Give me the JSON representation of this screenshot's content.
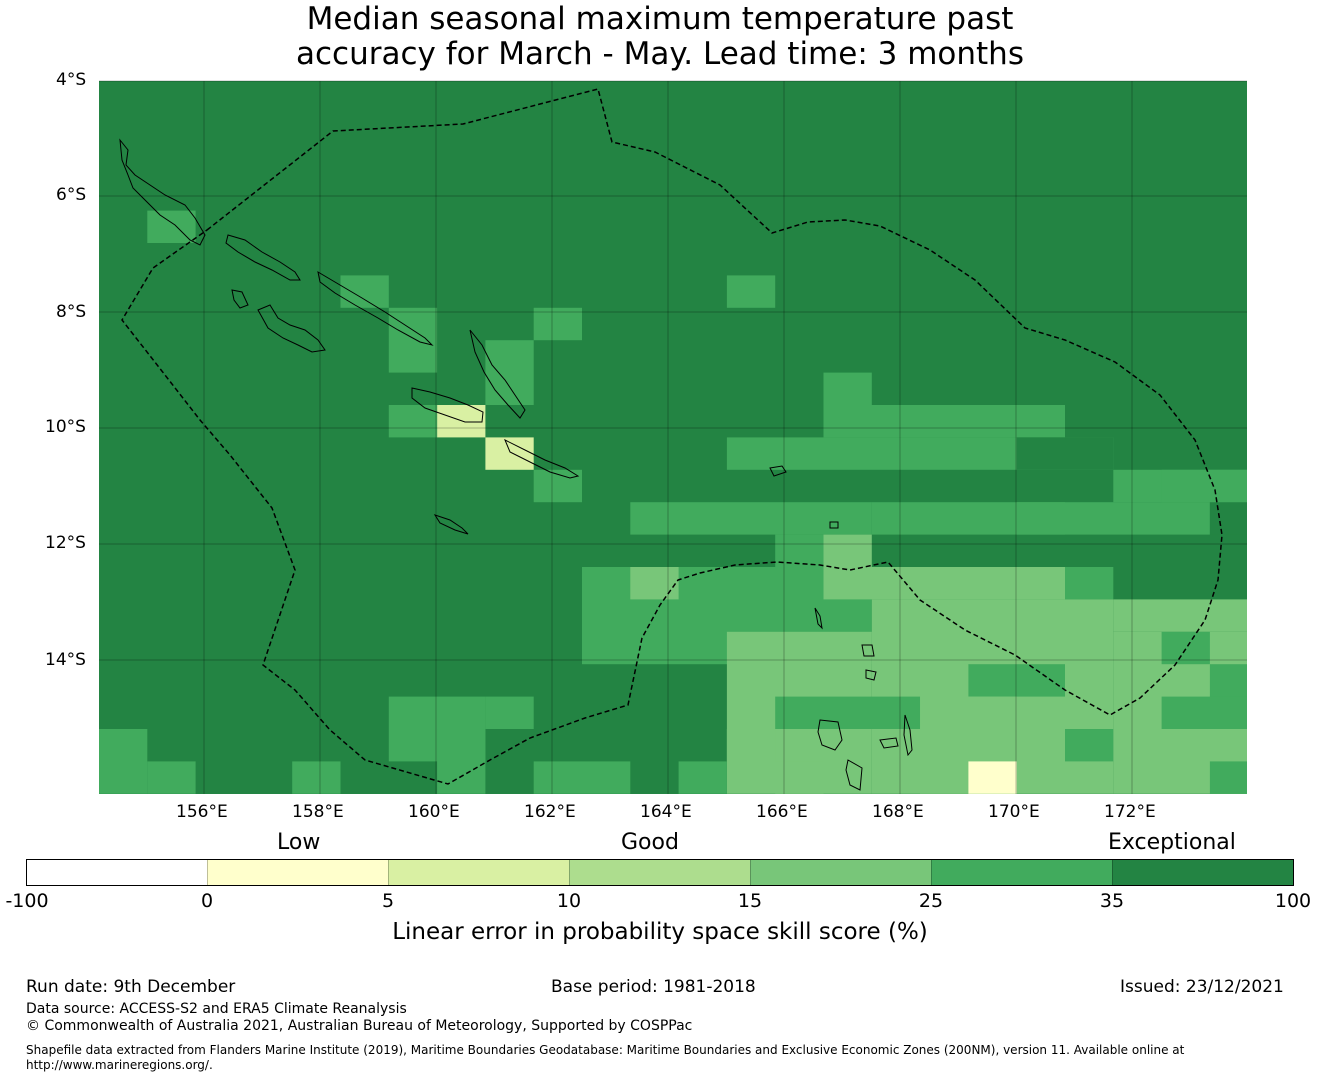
{
  "title_line1": "Median seasonal maximum temperature past",
  "title_line2": "accuracy for March - May. Lead time: 3 months",
  "lat_labels": [
    "4°S",
    "6°S",
    "8°S",
    "10°S",
    "12°S",
    "14°S"
  ],
  "lon_labels": [
    "156°E",
    "158°E",
    "160°E",
    "162°E",
    "164°E",
    "166°E",
    "168°E",
    "170°E",
    "172°E"
  ],
  "colorbar": {
    "category_labels": [
      "Low",
      "Good",
      "Exceptional"
    ],
    "ticks": [
      "-100",
      "0",
      "5",
      "10",
      "15",
      "25",
      "35",
      "100"
    ],
    "colors": [
      "#ffffff",
      "#ffffcc",
      "#d9f0a3",
      "#addd8e",
      "#78c679",
      "#41ab5d",
      "#238443"
    ],
    "axis_title": "Linear error in probability space skill score (%)"
  },
  "footer": {
    "run_date": "Run date: 9th December",
    "base_period": "Base period: 1981-2018",
    "issued": "Issued: 23/12/2021",
    "data_source": "Data source: ACCESS-S2 and ERA5 Climate Reanalysis",
    "copyright": "© Commonwealth of Australia 2021, Australian Bureau of Meteorology, Supported by COSPPac",
    "shapefile": "Shapefile data extracted from Flanders Marine Institute (2019), Maritime Boundaries Geodatabase: Maritime Boundaries and Exclusive Economic Zones (200NM), version 11. Available online at http://www.marineregions.org/."
  }
}
